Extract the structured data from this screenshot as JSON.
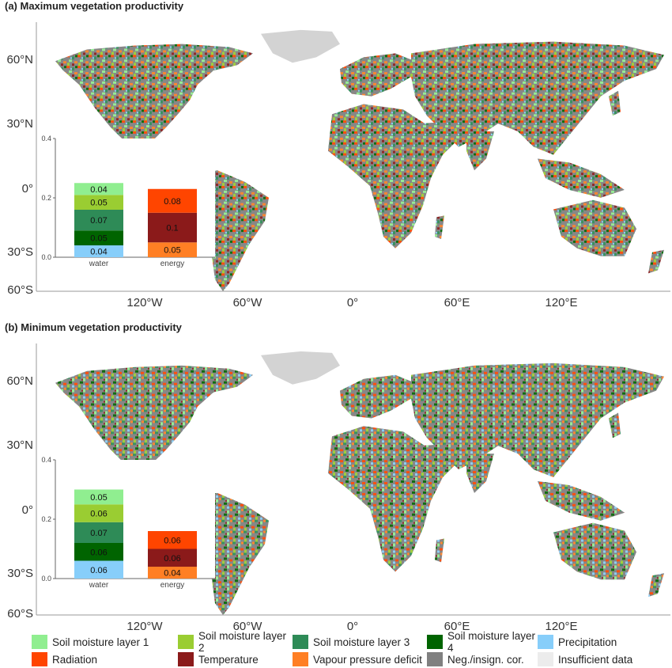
{
  "colors": {
    "sm1": "#90ee90",
    "sm2": "#9acd32",
    "sm3": "#2e8b57",
    "sm4": "#006400",
    "precip": "#87cefa",
    "radiation": "#ff4500",
    "temperature": "#8b1a1a",
    "vpd": "#ff7f24",
    "neg": "#808080",
    "insufficient": "#ececec",
    "land_nodata": "#d3d3d3"
  },
  "panels": [
    {
      "title": "(a) Maximum vegetation productivity",
      "lat_labels": [
        "60°N",
        "30°N",
        "0°",
        "30°S",
        "60°S"
      ],
      "lon_labels": [
        "120°W",
        "60°W",
        "0°",
        "60°E",
        "120°E"
      ],
      "inset": {
        "yticks": [
          "0.0",
          "0.2",
          "0.4"
        ],
        "ylim": [
          0,
          0.4
        ],
        "categories": [
          "water",
          "energy"
        ],
        "water": [
          {
            "key": "precip",
            "value": 0.04,
            "label": "0.04"
          },
          {
            "key": "sm4",
            "value": 0.05,
            "label": "0.05"
          },
          {
            "key": "sm3",
            "value": 0.07,
            "label": "0.07"
          },
          {
            "key": "sm2",
            "value": 0.05,
            "label": "0.05"
          },
          {
            "key": "sm1",
            "value": 0.04,
            "label": "0.04"
          }
        ],
        "energy": [
          {
            "key": "vpd",
            "value": 0.05,
            "label": "0.05"
          },
          {
            "key": "temperature",
            "value": 0.1,
            "label": "0.1"
          },
          {
            "key": "radiation",
            "value": 0.08,
            "label": "0.08"
          }
        ]
      }
    },
    {
      "title": "(b)  Minimum vegetation productivity",
      "lat_labels": [
        "60°N",
        "30°N",
        "0°",
        "30°S",
        "60°S"
      ],
      "lon_labels": [
        "120°W",
        "60°W",
        "0°",
        "60°E",
        "120°E"
      ],
      "inset": {
        "yticks": [
          "0.0",
          "0.2",
          "0.4"
        ],
        "ylim": [
          0,
          0.4
        ],
        "categories": [
          "water",
          "energy"
        ],
        "water": [
          {
            "key": "precip",
            "value": 0.06,
            "label": "0.06"
          },
          {
            "key": "sm4",
            "value": 0.06,
            "label": "0.06"
          },
          {
            "key": "sm3",
            "value": 0.07,
            "label": "0.07"
          },
          {
            "key": "sm2",
            "value": 0.06,
            "label": "0.06"
          },
          {
            "key": "sm1",
            "value": 0.05,
            "label": "0.05"
          }
        ],
        "energy": [
          {
            "key": "vpd",
            "value": 0.04,
            "label": "0.04"
          },
          {
            "key": "temperature",
            "value": 0.06,
            "label": "0.06"
          },
          {
            "key": "radiation",
            "value": 0.06,
            "label": "0.06"
          }
        ]
      }
    }
  ],
  "legend": [
    [
      {
        "key": "sm1",
        "label": "Soil moisture layer 1"
      },
      {
        "key": "sm2",
        "label": "Soil moisture layer 2"
      },
      {
        "key": "sm3",
        "label": "Soil moisture layer 3"
      },
      {
        "key": "sm4",
        "label": "Soil moisture layer 4"
      },
      {
        "key": "precip",
        "label": "Precipitation"
      }
    ],
    [
      {
        "key": "radiation",
        "label": "Radiation"
      },
      {
        "key": "temperature",
        "label": "Temperature"
      },
      {
        "key": "vpd",
        "label": "Vapour pressure deficit"
      },
      {
        "key": "neg",
        "label": "Neg./insign. cor."
      },
      {
        "key": "insufficient",
        "label": "Insufficient data"
      }
    ]
  ]
}
